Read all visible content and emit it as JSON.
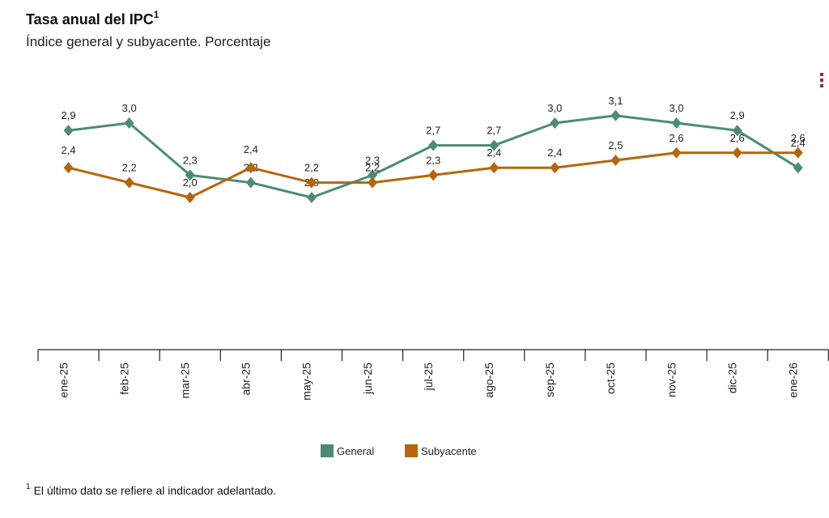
{
  "title": "Tasa anual del IPC",
  "title_note": "1",
  "subtitle": "Índice general y subyacente. Porcentaje",
  "menu_icon": "more-vert-icon",
  "footnote": {
    "mark": "1",
    "text": "El último dato se refiere al indicador adelantado."
  },
  "chart_data": {
    "type": "line",
    "categories": [
      "ene-25",
      "feb-25",
      "mar-25",
      "abr-25",
      "may-25",
      "jun-25",
      "jul-25",
      "ago-25",
      "sep-25",
      "oct-25",
      "nov-25",
      "dic-25",
      "ene-26"
    ],
    "series": [
      {
        "name": "General",
        "color": "#4a8c74",
        "marker": "diamond",
        "values": [
          2.9,
          3.0,
          2.3,
          2.2,
          2.0,
          2.3,
          2.7,
          2.7,
          3.0,
          3.1,
          3.0,
          2.9,
          2.4
        ],
        "labels": [
          "2,9",
          "3,0",
          "2,3",
          "2,2",
          "2,0",
          "2,3",
          "2,7",
          "2,7",
          "3,0",
          "3,1",
          "3,0",
          "2,9",
          "2,4"
        ]
      },
      {
        "name": "Subyacente",
        "color": "#b5660c",
        "marker": "diamond",
        "values": [
          2.4,
          2.2,
          2.0,
          2.4,
          2.2,
          2.2,
          2.3,
          2.4,
          2.4,
          2.5,
          2.6,
          2.6,
          2.6
        ],
        "labels": [
          "2,4",
          "2,2",
          "2,0",
          "2,4",
          "2,2",
          "2,2",
          "2,3",
          "2,4",
          "2,4",
          "2,5",
          "2,6",
          "2,6",
          "2,6"
        ]
      }
    ],
    "y_visible_range": [
      2.0,
      3.1
    ],
    "gridlines": false,
    "legend_position": "bottom-center",
    "data_labels": true
  }
}
